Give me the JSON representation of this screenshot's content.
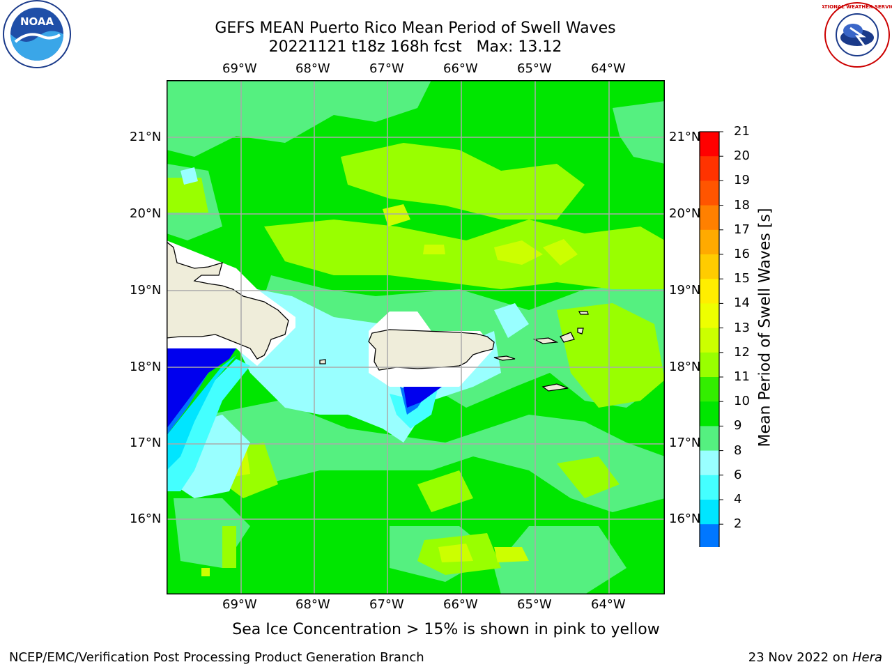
{
  "title_line1": "GEFS MEAN Puerto Rico Mean Period of Swell Waves",
  "title_line2": "20221121 t18z 168h fcst   Max: 13.12",
  "lon_labels": [
    "69°W",
    "68°W",
    "67°W",
    "66°W",
    "65°W",
    "64°W"
  ],
  "lat_labels": [
    "21°N",
    "20°N",
    "19°N",
    "18°N",
    "17°N",
    "16°N"
  ],
  "colorbar": {
    "label": "Mean Period of Swell Waves [s]",
    "ticks": [
      "21",
      "20",
      "19",
      "18",
      "17",
      "16",
      "15",
      "14",
      "13",
      "12",
      "11",
      "10",
      "9",
      "8",
      "6",
      "4",
      "2"
    ],
    "colors": [
      "#ff0000",
      "#ff3300",
      "#ff5500",
      "#ff8000",
      "#ffaa00",
      "#ffcc00",
      "#ffee00",
      "#eeff00",
      "#ccff00",
      "#99ff00",
      "#33ee00",
      "#00e600",
      "#55f080",
      "#99ffff",
      "#44ffff",
      "#00e5ff",
      "#0077ff",
      "#0000ee"
    ]
  },
  "note": "Sea Ice Concentration > 15% is shown in pink to yellow",
  "footer_left": "NCEP/EMC/Verification Post Processing Product Generation Branch",
  "footer_right_prefix": "23 Nov 2022 on ",
  "footer_right_host": "Hera",
  "logos": {
    "left": "NOAA",
    "right": "NATIONAL WEATHER SERVICE"
  }
}
